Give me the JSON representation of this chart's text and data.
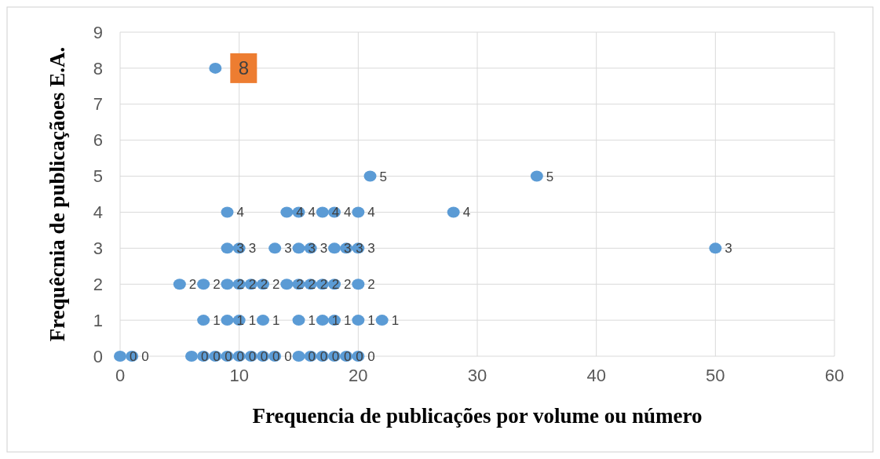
{
  "chart_data": {
    "type": "scatter",
    "xlabel": "Frequencia de publicações por volume ou número",
    "ylabel": "Frequêcnia de publicaçãoes E.A.",
    "xlim": [
      0,
      60
    ],
    "xticks": [
      0,
      10,
      20,
      30,
      40,
      50,
      60
    ],
    "ylim": [
      0,
      9
    ],
    "yticks": [
      0,
      1,
      2,
      3,
      4,
      5,
      6,
      7,
      8,
      9
    ],
    "grid": true,
    "marker": "circle",
    "series": [
      {
        "color": "#5b9bd5",
        "x": [
          8,
          21,
          35,
          9,
          14,
          15,
          17,
          18,
          20,
          28,
          9,
          10,
          13,
          15,
          16,
          18,
          19,
          20,
          50,
          5,
          7,
          9,
          10,
          11,
          12,
          14,
          15,
          16,
          17,
          18,
          20,
          7,
          9,
          10,
          12,
          15,
          17,
          18,
          20,
          22,
          0,
          1,
          6,
          7,
          8,
          9,
          10,
          11,
          12,
          13,
          15,
          16,
          17,
          18,
          19,
          20
        ],
        "values": [
          8,
          5,
          5,
          4,
          4,
          4,
          4,
          4,
          4,
          4,
          3,
          3,
          3,
          3,
          3,
          3,
          3,
          3,
          3,
          2,
          2,
          2,
          2,
          2,
          2,
          2,
          2,
          2,
          2,
          2,
          2,
          1,
          1,
          1,
          1,
          1,
          1,
          1,
          1,
          1,
          0,
          0,
          0,
          0,
          0,
          0,
          0,
          0,
          0,
          0,
          0,
          0,
          0,
          0,
          0,
          0
        ],
        "value_labels": [
          null,
          "5",
          "5",
          "4",
          "4",
          "4",
          "4",
          "4",
          "4",
          "4",
          "3",
          "3",
          "3",
          "3",
          "3",
          "3",
          "3",
          "3",
          "3",
          "2",
          "2",
          "2",
          "2",
          "2",
          "2",
          "2",
          "2",
          "2",
          "2",
          "2",
          "2",
          "1",
          "1",
          "1",
          "1",
          "1",
          "1",
          "1",
          "1",
          "1",
          "0",
          "0",
          "0",
          "0",
          "0",
          "0",
          "0",
          "0",
          "0",
          "0",
          "0",
          "0",
          "0",
          "0",
          "0",
          "0"
        ]
      }
    ],
    "annotations": [
      {
        "text": "8",
        "x": 8,
        "y": 8
      }
    ]
  }
}
